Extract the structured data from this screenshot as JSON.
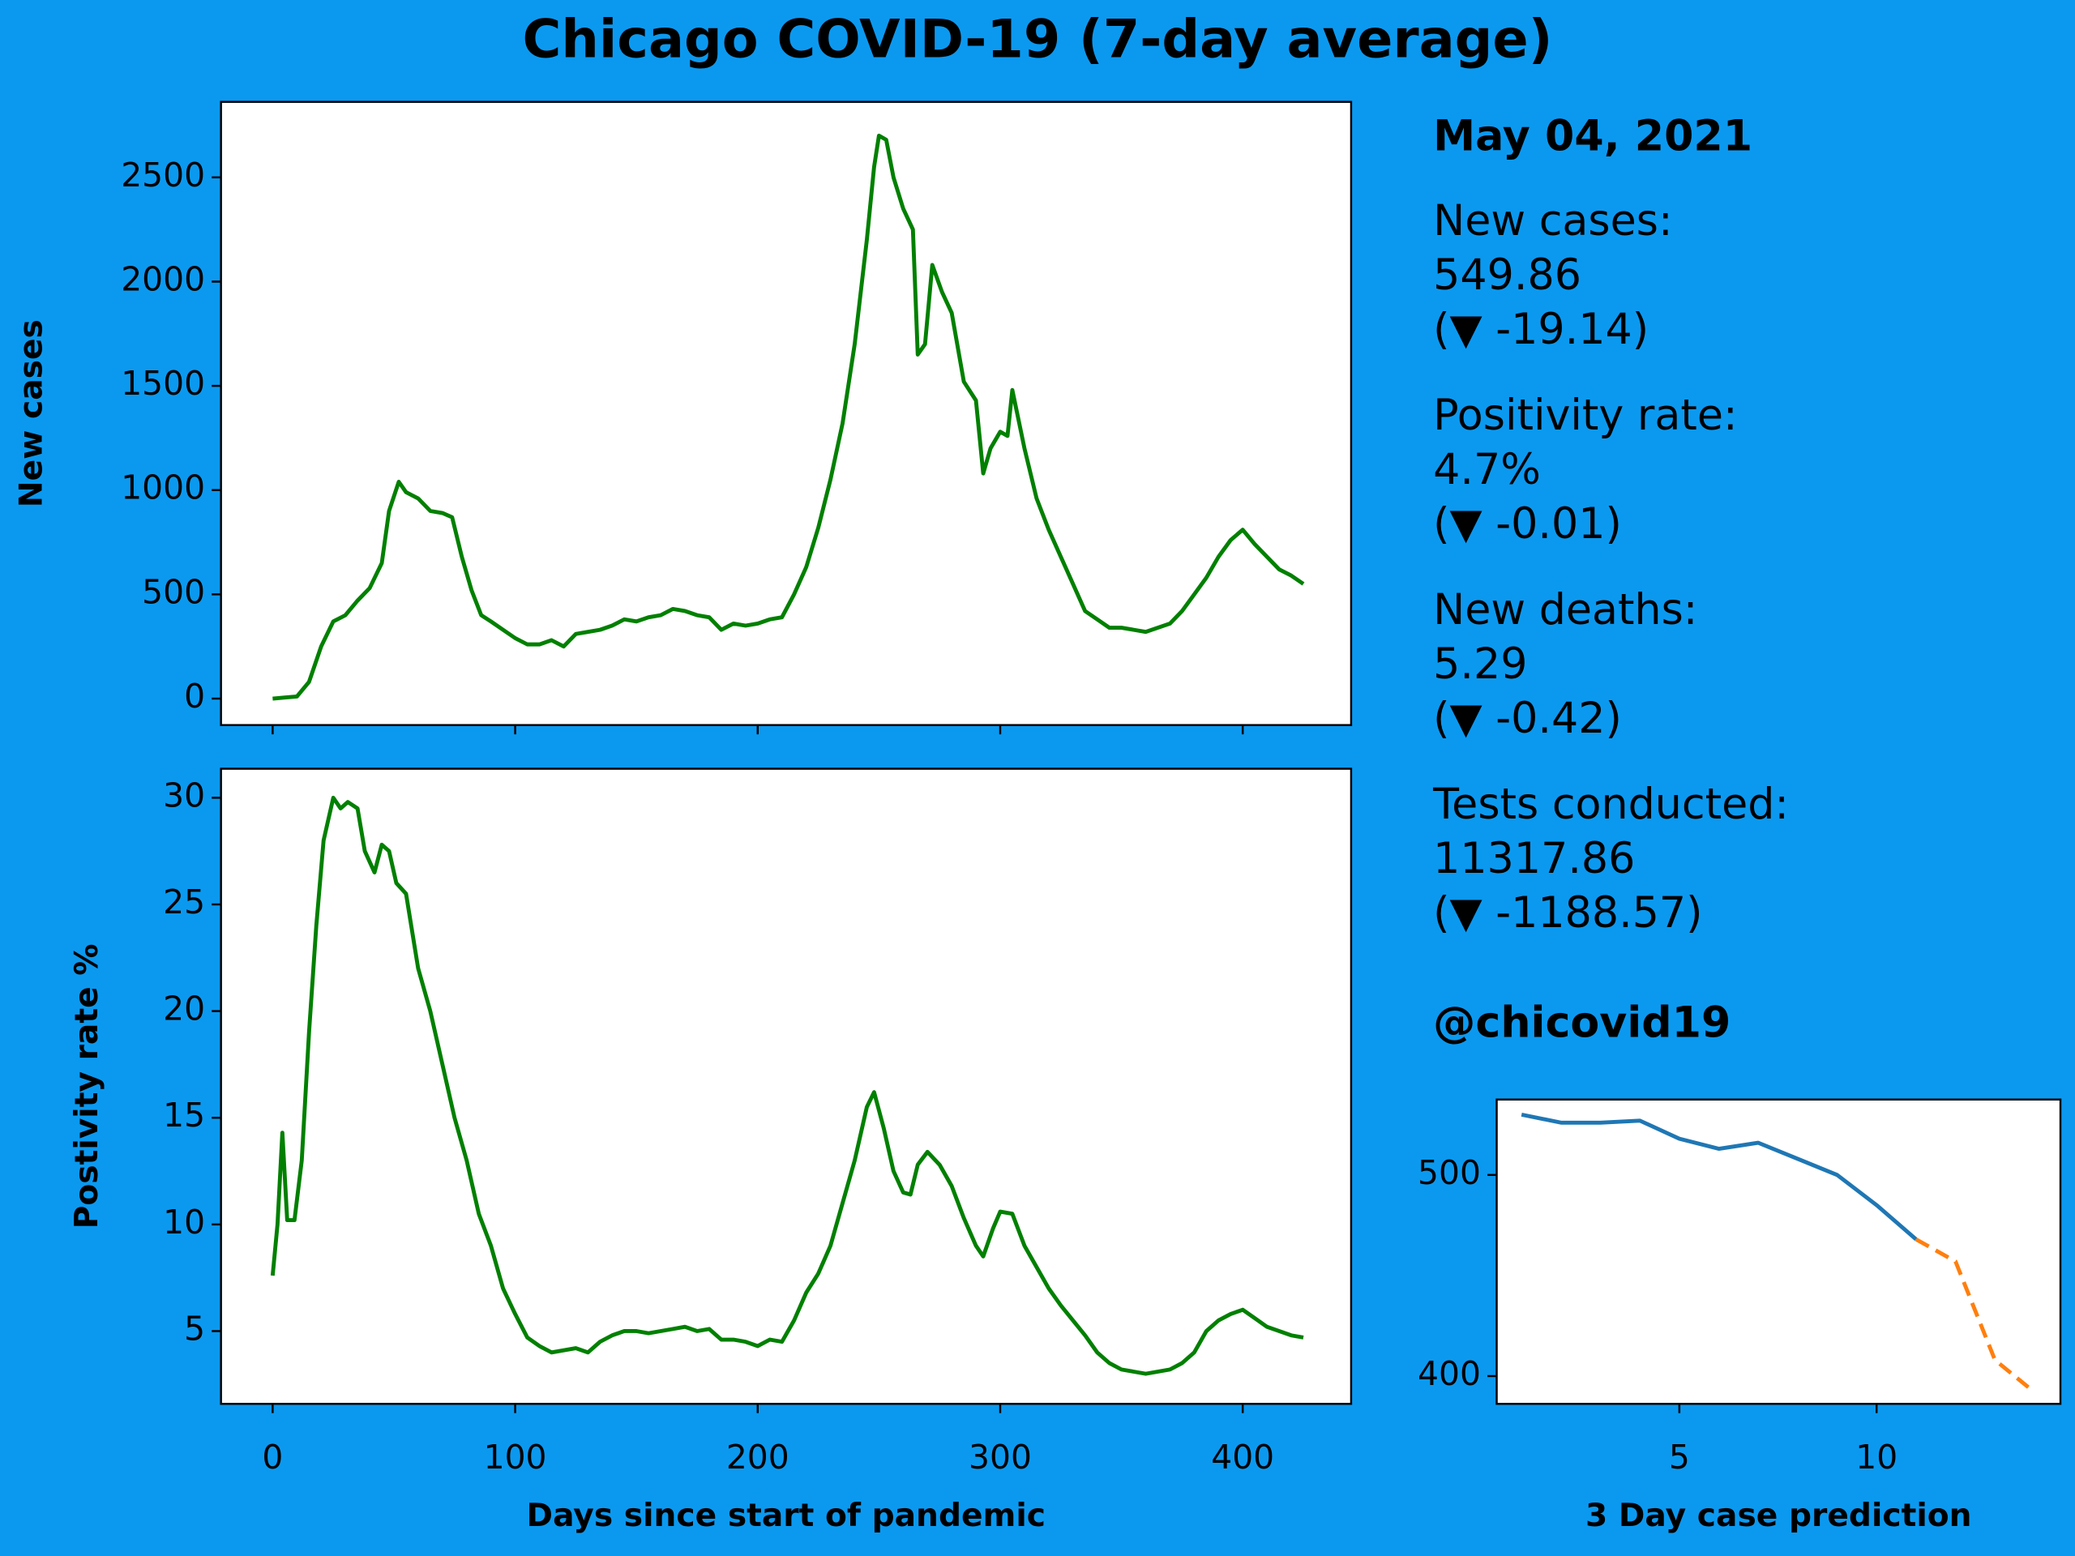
{
  "title": "Chicago COVID-19 (7-day average)",
  "summary": {
    "date": "May 04, 2021",
    "items": [
      {
        "label": "New cases:",
        "value": "549.86",
        "change": "(▼ -19.14)"
      },
      {
        "label": "Positivity rate:",
        "value": "4.7%",
        "change": "(▼ -0.01)"
      },
      {
        "label": "New deaths:",
        "value": "5.29",
        "change": "(▼ -0.42)"
      },
      {
        "label": "Tests conducted:",
        "value": "11317.86",
        "change": "(▼ -1188.57)"
      }
    ],
    "handle": "@chicovid19"
  },
  "chart_data": [
    {
      "type": "line",
      "ylabel": "New cases",
      "x": [
        0,
        5,
        10,
        15,
        20,
        25,
        30,
        35,
        40,
        45,
        48,
        52,
        55,
        60,
        65,
        70,
        74,
        78,
        82,
        86,
        90,
        95,
        100,
        105,
        110,
        115,
        120,
        125,
        130,
        135,
        140,
        145,
        150,
        155,
        160,
        165,
        170,
        175,
        180,
        185,
        190,
        195,
        200,
        205,
        210,
        215,
        220,
        225,
        230,
        235,
        240,
        245,
        248,
        250,
        253,
        256,
        260,
        264,
        266,
        269,
        272,
        276,
        280,
        285,
        290,
        293,
        296,
        300,
        303,
        305,
        310,
        315,
        320,
        325,
        330,
        335,
        340,
        345,
        350,
        355,
        360,
        365,
        370,
        375,
        380,
        385,
        390,
        395,
        400,
        405,
        410,
        415,
        420,
        425
      ],
      "series": [
        {
          "color": "#008000",
          "values": [
            0,
            5,
            10,
            80,
            250,
            370,
            400,
            470,
            530,
            650,
            900,
            1040,
            990,
            960,
            900,
            890,
            870,
            680,
            520,
            400,
            370,
            330,
            290,
            260,
            260,
            280,
            250,
            310,
            320,
            330,
            350,
            380,
            370,
            390,
            400,
            430,
            420,
            400,
            390,
            330,
            360,
            350,
            360,
            380,
            390,
            500,
            630,
            820,
            1050,
            1320,
            1700,
            2200,
            2550,
            2700,
            2680,
            2500,
            2350,
            2250,
            1650,
            1700,
            2080,
            1950,
            1850,
            1520,
            1430,
            1080,
            1200,
            1280,
            1260,
            1480,
            1200,
            960,
            810,
            680,
            550,
            420,
            380,
            340,
            340,
            330,
            320,
            340,
            360,
            420,
            500,
            580,
            680,
            760,
            810,
            740,
            680,
            620,
            590,
            550
          ]
        }
      ],
      "xlim": [
        -21.3,
        444.7
      ],
      "ylim": [
        -127,
        2862
      ],
      "xticks": [
        0,
        100,
        200,
        300,
        400
      ],
      "yticks": [
        0,
        500,
        1000,
        1500,
        2000,
        2500
      ]
    },
    {
      "type": "line",
      "ylabel": "Postivity rate %",
      "xlabel": "Days since start of pandemic",
      "x": [
        0,
        2,
        4,
        6,
        9,
        12,
        15,
        18,
        21,
        25,
        28,
        31,
        35,
        38,
        42,
        45,
        48,
        51,
        55,
        60,
        65,
        70,
        75,
        80,
        85,
        90,
        95,
        100,
        105,
        110,
        115,
        120,
        125,
        130,
        135,
        140,
        145,
        150,
        155,
        160,
        165,
        170,
        175,
        180,
        185,
        190,
        195,
        200,
        205,
        210,
        215,
        220,
        225,
        230,
        235,
        240,
        245,
        248,
        252,
        256,
        260,
        263,
        266,
        270,
        275,
        280,
        285,
        290,
        293,
        297,
        300,
        305,
        310,
        315,
        320,
        325,
        330,
        335,
        340,
        345,
        350,
        355,
        360,
        365,
        370,
        375,
        380,
        385,
        390,
        395,
        400,
        405,
        410,
        415,
        420,
        425
      ],
      "series": [
        {
          "color": "#008000",
          "values": [
            7.6,
            10,
            14.3,
            10.2,
            10.2,
            13,
            19,
            24,
            28,
            30,
            29.5,
            29.8,
            29.5,
            27.5,
            26.5,
            27.8,
            27.5,
            26,
            25.5,
            22,
            20,
            17.5,
            15,
            13,
            10.5,
            9,
            7,
            5.8,
            4.7,
            4.3,
            4.0,
            4.1,
            4.2,
            4.0,
            4.5,
            4.8,
            5.0,
            5.0,
            4.9,
            5.0,
            5.1,
            5.2,
            5.0,
            5.1,
            4.6,
            4.6,
            4.5,
            4.3,
            4.6,
            4.5,
            5.5,
            6.8,
            7.7,
            9,
            11,
            13,
            15.5,
            16.2,
            14.5,
            12.5,
            11.5,
            11.4,
            12.8,
            13.4,
            12.8,
            11.8,
            10.3,
            9,
            8.5,
            9.8,
            10.6,
            10.5,
            9,
            8,
            7,
            6.2,
            5.5,
            4.8,
            4,
            3.5,
            3.2,
            3.1,
            3.0,
            3.1,
            3.2,
            3.5,
            4,
            5,
            5.5,
            5.8,
            6,
            5.6,
            5.2,
            5,
            4.8,
            4.7
          ]
        }
      ],
      "xlim": [
        -21.3,
        444.7
      ],
      "ylim": [
        1.59,
        31.36
      ],
      "xticks": [
        0,
        100,
        200,
        300,
        400
      ],
      "yticks": [
        5,
        10,
        15,
        20,
        25,
        30
      ]
    },
    {
      "type": "line",
      "xlabel": "3 Day case prediction",
      "series": [
        {
          "color": "#1f77b4",
          "x": [
            1,
            2,
            3,
            4,
            5,
            6,
            7,
            8,
            9,
            10,
            11
          ],
          "values": [
            530,
            526,
            526,
            527,
            518,
            513,
            516,
            508,
            500,
            485,
            468
          ]
        },
        {
          "color": "#ff7f0e",
          "linestyle": "dashed",
          "x": [
            11,
            12,
            13,
            14
          ],
          "values": [
            468,
            457,
            408,
            392
          ]
        }
      ],
      "xlim": [
        0.37,
        14.66
      ],
      "ylim": [
        386.2,
        537.5
      ],
      "xticks": [
        5,
        10
      ],
      "yticks": [
        400,
        500
      ]
    }
  ]
}
